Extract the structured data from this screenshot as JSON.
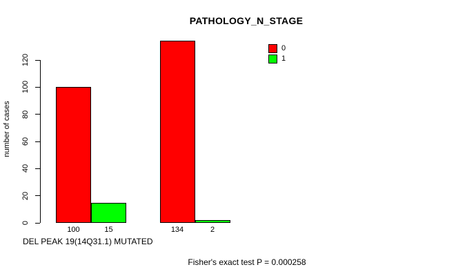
{
  "chart_data": {
    "type": "bar",
    "title": "PATHOLOGY_N_STAGE",
    "ylabel": "number of cases",
    "xlabel": "DEL PEAK 19(14Q31.1) MUTATED",
    "footnote": "Fisher's exact test P = 0.000258",
    "ylim": [
      0,
      120
    ],
    "yticks": [
      0,
      20,
      40,
      60,
      80,
      100,
      120
    ],
    "grid": false,
    "legend_position": "top-right",
    "colors": {
      "series0": "#ff0000",
      "series1": "#00ff00"
    },
    "legend": [
      {
        "label": "0",
        "color": "#ff0000"
      },
      {
        "label": "1",
        "color": "#00ff00"
      }
    ],
    "groups": [
      {
        "bars": [
          {
            "series": "0",
            "value": 100,
            "count_label": "100",
            "color": "#ff0000"
          },
          {
            "series": "1",
            "value": 15,
            "count_label": "15",
            "color": "#00ff00"
          }
        ]
      },
      {
        "bars": [
          {
            "series": "0",
            "value": 134,
            "count_label": "134",
            "color": "#ff0000"
          },
          {
            "series": "1",
            "value": 2,
            "count_label": "2",
            "color": "#00ff00"
          }
        ]
      }
    ]
  }
}
